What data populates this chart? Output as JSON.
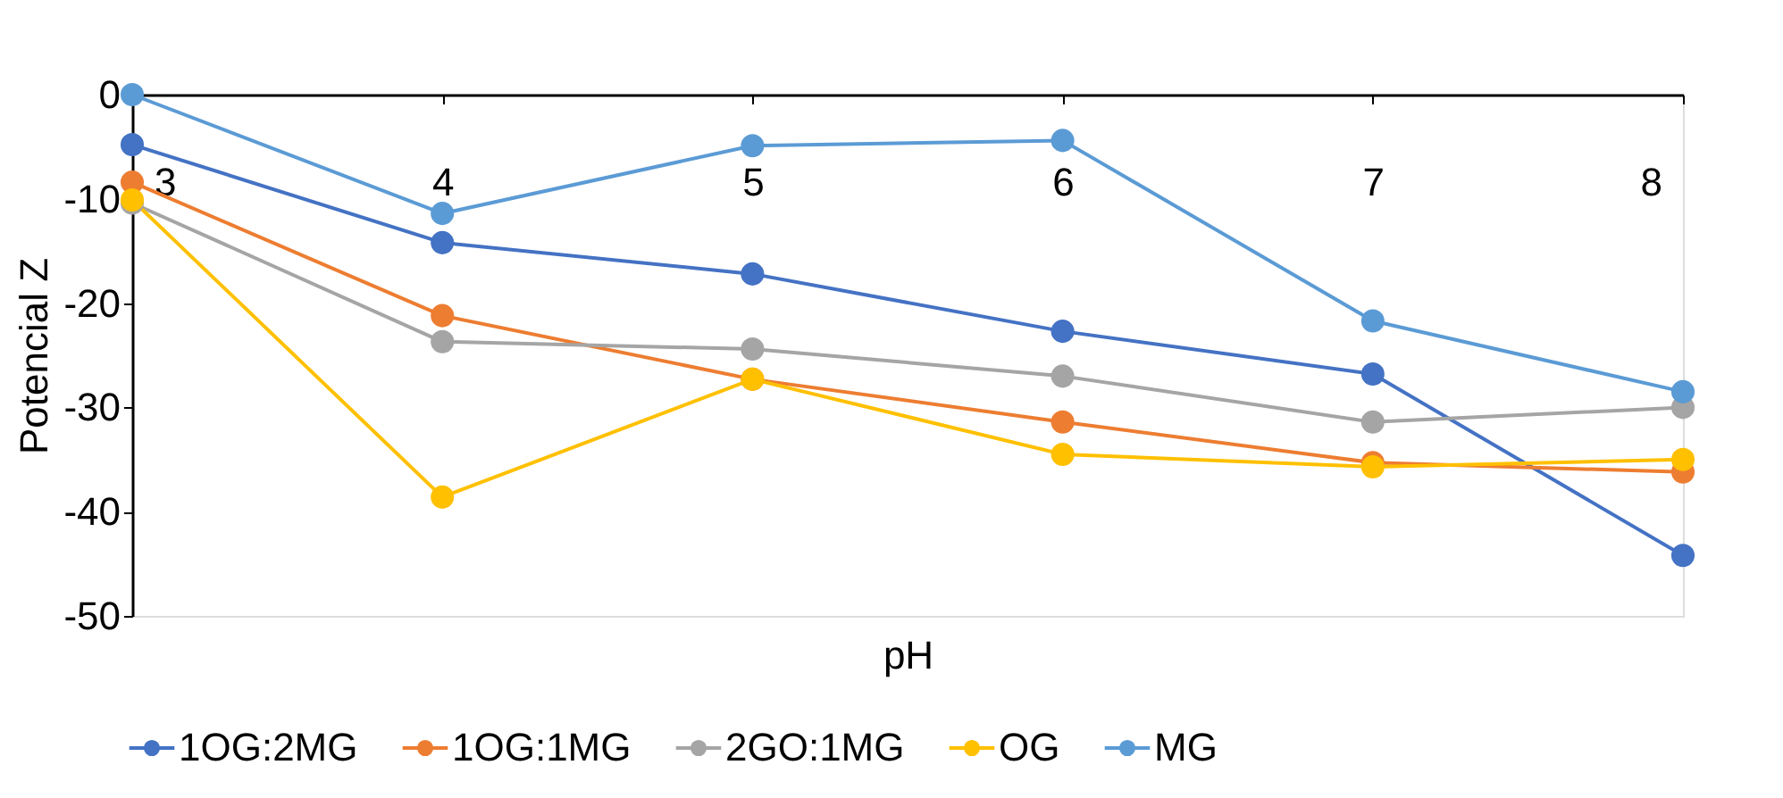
{
  "chart_data": {
    "type": "line",
    "xlabel": "pH",
    "ylabel": "Potencial Z",
    "x": [
      3,
      4,
      5,
      6,
      7,
      8
    ],
    "xlim": [
      3,
      8
    ],
    "xticks": [
      3,
      4,
      5,
      6,
      7,
      8
    ],
    "ylim": [
      -50,
      0
    ],
    "yticks": [
      0,
      -10,
      -20,
      -30,
      -40,
      -50
    ],
    "series": [
      {
        "name": "1OG:2MG",
        "color": "#4472c4",
        "values": [
          -4.8,
          -14.2,
          -17.2,
          -22.7,
          -26.8,
          -44.2
        ]
      },
      {
        "name": "1OG:1MG",
        "color": "#ed7d31",
        "values": [
          -8.4,
          -21.2,
          -27.3,
          -31.4,
          -35.3,
          -36.2
        ]
      },
      {
        "name": "2GO:1MG",
        "color": "#a5a5a5",
        "values": [
          -10.4,
          -23.7,
          -24.4,
          -27.0,
          -31.4,
          -30.0
        ]
      },
      {
        "name": "OG",
        "color": "#ffc000",
        "values": [
          -10.1,
          -38.6,
          -27.3,
          -34.5,
          -35.7,
          -35.0
        ]
      },
      {
        "name": "MG",
        "color": "#5b9bd5",
        "values": [
          0,
          -11.4,
          -4.9,
          -4.4,
          -21.7,
          -28.5
        ]
      }
    ],
    "marker": "circle",
    "line_style": "solid",
    "legend": "bottom",
    "grid": false
  }
}
